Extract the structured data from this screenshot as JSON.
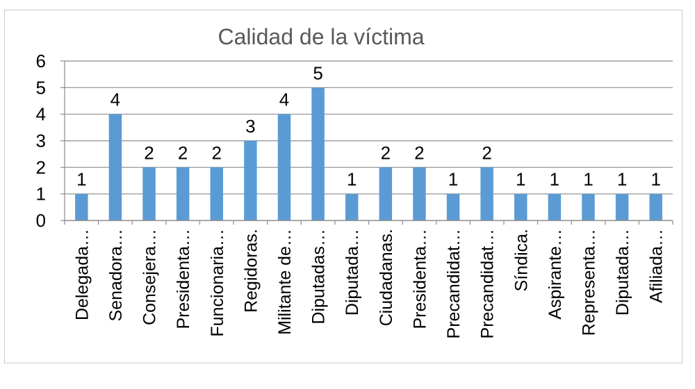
{
  "chart_data": {
    "type": "bar",
    "title": "Calidad de la víctima",
    "xlabel": "",
    "ylabel": "",
    "ylim": [
      0,
      6
    ],
    "yticks": [
      "0",
      "1",
      "2",
      "3",
      "4",
      "5",
      "6"
    ],
    "grid": true,
    "legend": "none",
    "bar_color": "#5b9bd5",
    "categories": [
      "Delegada…",
      "Senadora…",
      "Consejera…",
      "Presidenta…",
      "Funcionaria…",
      "Regidoras.",
      "Militante de…",
      "Diputadas…",
      "Diputada…",
      "Ciudadanas.",
      "Presidenta…",
      "Precandidat…",
      "Precandidat…",
      "Síndica.",
      "Aspirante…",
      "Representa…",
      "Diputada…",
      "Afiliada…"
    ],
    "values": [
      1,
      4,
      2,
      2,
      2,
      3,
      4,
      5,
      1,
      2,
      2,
      1,
      2,
      1,
      1,
      1,
      1,
      1
    ]
  }
}
